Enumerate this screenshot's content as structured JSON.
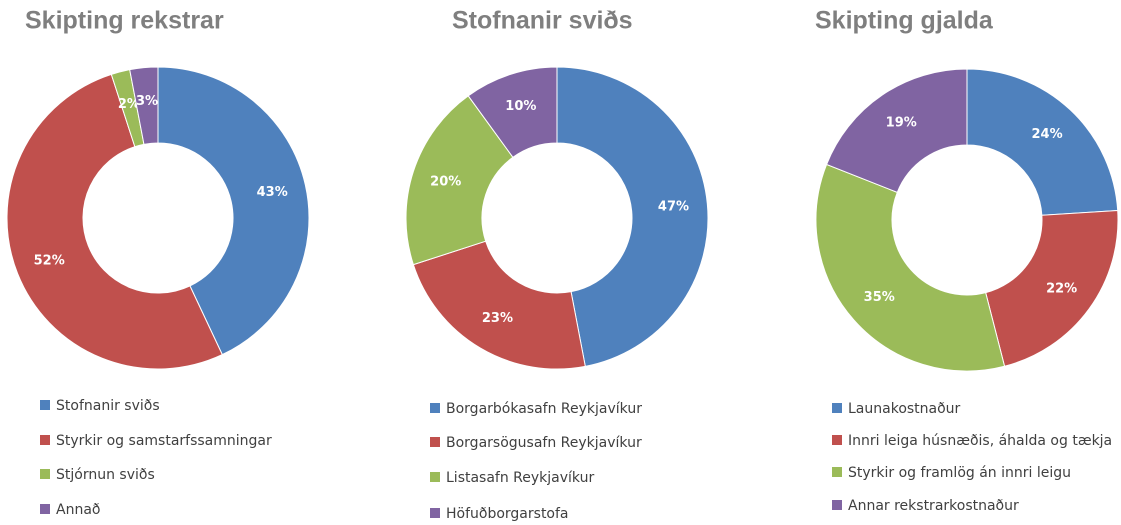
{
  "chart_data": [
    {
      "type": "donut",
      "title": "Skipting rekstrar",
      "categories": [
        "Stofnanir sviðs",
        "Styrkir og samstarfssamningar",
        "Stjórnun sviðs",
        "Annað"
      ],
      "values": [
        43,
        52,
        2,
        3
      ],
      "value_labels": [
        "43%",
        "52%",
        "2%",
        "3%"
      ],
      "colors": [
        "#4f81bd",
        "#c0504d",
        "#9bbb59",
        "#8064a2"
      ]
    },
    {
      "type": "donut",
      "title": "Stofnanir sviðs",
      "categories": [
        "Borgarbókasafn Reykjavíkur",
        "Borgarsögusafn Reykjavíkur",
        "Listasafn Reykjavíkur",
        "Höfuðborgarstofa"
      ],
      "values": [
        47,
        23,
        20,
        10
      ],
      "value_labels": [
        "47%",
        "23%",
        "20%",
        "10%"
      ],
      "colors": [
        "#4f81bd",
        "#c0504d",
        "#9bbb59",
        "#8064a2"
      ]
    },
    {
      "type": "donut",
      "title": "Skipting gjalda",
      "categories": [
        "Launakostnaður",
        "Innri leiga húsnæðis, áhalda og tækja",
        "Styrkir og framlög án innri leigu",
        "Annar rekstrarkostnaður"
      ],
      "values": [
        24,
        22,
        35,
        19
      ],
      "value_labels": [
        "24%",
        "22%",
        "35%",
        "19%"
      ],
      "colors": [
        "#4f81bd",
        "#c0504d",
        "#9bbb59",
        "#8064a2"
      ]
    }
  ]
}
